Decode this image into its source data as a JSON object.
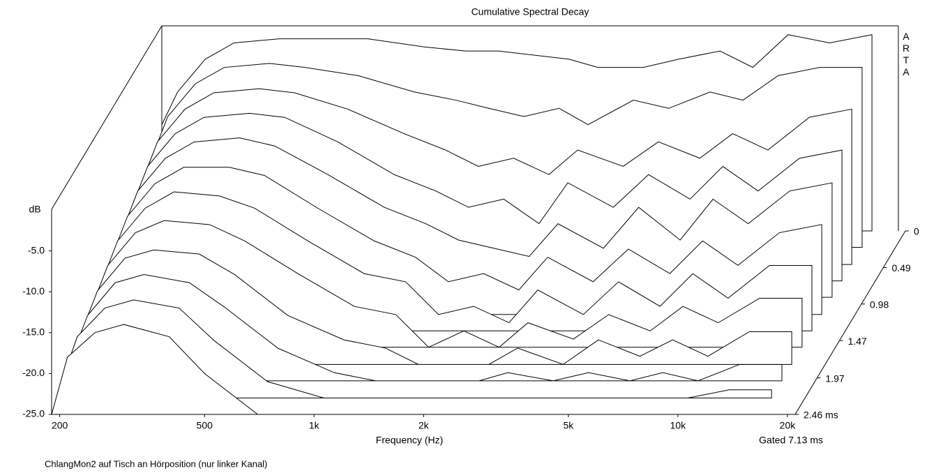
{
  "chart_data": {
    "type": "waterfall",
    "title": "Cumulative Spectral Decay",
    "xlabel": "Frequency (Hz)",
    "ylabel": "dB",
    "subtitle": "Gated 7.13 ms",
    "footer": "ChlangMon2 auf Tisch an Hörposition (nur linker Kanal)",
    "watermark": "ARTA",
    "log_x": true,
    "color": "#000000",
    "fill": "#ffffff",
    "xlim": [
      190,
      21000
    ],
    "xticks": [
      200,
      500,
      {
        "value": 1000,
        "label": "1k"
      },
      {
        "value": 2000,
        "label": "2k"
      },
      {
        "value": 5000,
        "label": "5k"
      },
      {
        "value": 10000,
        "label": "10k"
      },
      {
        "value": 20000,
        "label": "20k"
      }
    ],
    "ylim": [
      -25,
      0
    ],
    "yticks": [
      {
        "value": -25,
        "label": "-25.0"
      },
      {
        "value": -20,
        "label": "-20.0"
      },
      {
        "value": -15,
        "label": "-15.0"
      },
      {
        "value": -10,
        "label": "-10.0"
      },
      {
        "value": -5,
        "label": "-5.0"
      }
    ],
    "zlim": [
      0,
      2.46
    ],
    "zticks": [
      0,
      0.49,
      0.98,
      1.47,
      1.97,
      {
        "value": 2.46,
        "label": "2.46 ms"
      }
    ],
    "x": [
      190,
      210,
      250,
      300,
      400,
      500,
      700,
      1000,
      1300,
      1600,
      2000,
      2500,
      3000,
      4000,
      5000,
      6500,
      8000,
      10000,
      13000,
      17000
    ],
    "z": [
      0,
      0.22,
      0.45,
      0.67,
      0.89,
      1.12,
      1.34,
      1.56,
      1.79,
      2.01,
      2.24,
      2.46
    ],
    "values": [
      [
        -12,
        -8,
        -4,
        -2,
        -1.5,
        -1.5,
        -1.5,
        -2.5,
        -3,
        -3,
        -3.5,
        -4,
        -5,
        -5,
        -4,
        -3,
        -5,
        -1,
        -2,
        -1
      ],
      [
        -14,
        -9,
        -5,
        -3,
        -2.5,
        -3,
        -4,
        -6,
        -7,
        -8,
        -9,
        -8,
        -10,
        -7,
        -8,
        -6,
        -7,
        -4,
        -3,
        -3
      ],
      [
        -15,
        -10,
        -6,
        -4,
        -3.5,
        -4,
        -6,
        -9,
        -11,
        -13,
        -12,
        -14,
        -11,
        -13,
        -10,
        -12,
        -9,
        -11,
        -7,
        -6
      ],
      [
        -16,
        -11,
        -7,
        -5,
        -4.5,
        -5,
        -8,
        -12,
        -14,
        -16,
        -15,
        -18,
        -13,
        -16,
        -12,
        -15,
        -11,
        -14,
        -10,
        -9
      ],
      [
        -17,
        -12,
        -8,
        -6,
        -5.5,
        -6.5,
        -10,
        -14,
        -16,
        -18,
        -19,
        -20,
        -16,
        -19,
        -14,
        -18,
        -13,
        -16,
        -12,
        -11
      ],
      [
        -18,
        -13,
        -9,
        -7,
        -7,
        -8,
        -12,
        -16,
        -18,
        -21,
        -20,
        -22,
        -18,
        -21,
        -17,
        -20,
        -16,
        -19,
        -15,
        -14
      ],
      [
        -19,
        -14,
        -10,
        -8,
        -8.5,
        -10,
        -14,
        -18,
        -19,
        -23,
        -22,
        -24,
        -20,
        -23,
        -19,
        -22,
        -18,
        -21,
        -17,
        -17
      ],
      [
        -20,
        -15,
        -11,
        -9.5,
        -10,
        -12,
        -16,
        -20,
        -21,
        -25,
        -23,
        -25,
        -22,
        -24,
        -21,
        -23,
        -20,
        -22,
        -19,
        -19
      ],
      [
        -21,
        -16,
        -12,
        -11,
        -11.5,
        -14,
        -19,
        -22,
        -23,
        -25,
        -25,
        -25,
        -23,
        -25,
        -22,
        -24,
        -22,
        -24,
        -21,
        -21
      ],
      [
        -22,
        -17,
        -13,
        -12,
        -13,
        -16,
        -21,
        -24,
        -25,
        -25,
        -25,
        -25,
        -24,
        -25,
        -24,
        -25,
        -24,
        -25,
        -23,
        -23
      ],
      [
        -23,
        -17.5,
        -14,
        -13,
        -14,
        -18,
        -23,
        -25,
        -25,
        -25,
        -25,
        -25,
        -25,
        -25,
        -25,
        -25,
        -25,
        -25,
        -24,
        -24
      ],
      [
        -25,
        -18,
        -15,
        -14,
        -15.5,
        -20,
        -25,
        -25,
        -25,
        -25,
        -25,
        -25,
        -25,
        -25,
        -25,
        -25,
        -25,
        -25,
        -25,
        -25
      ]
    ]
  }
}
